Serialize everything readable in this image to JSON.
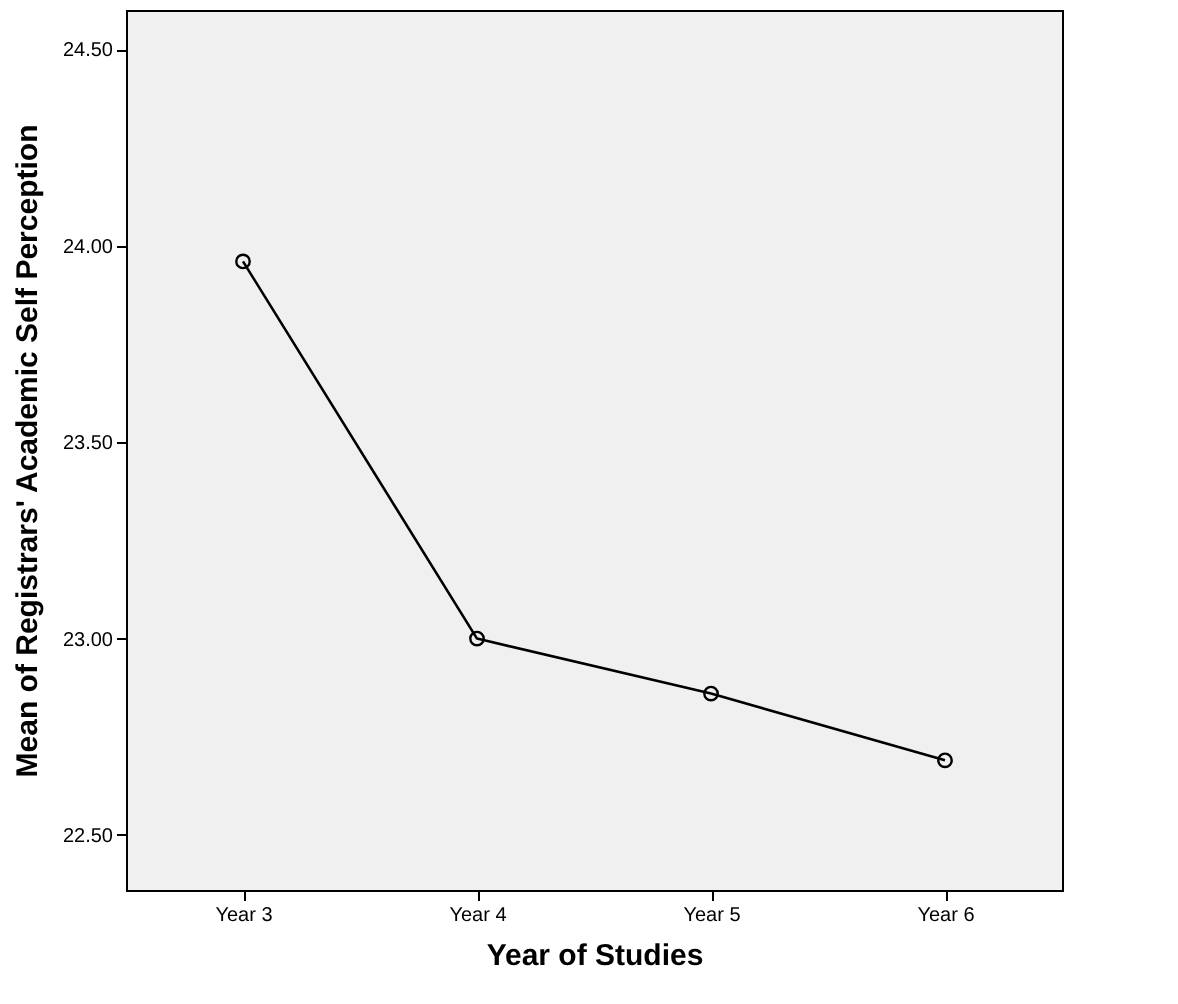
{
  "chart_data": {
    "type": "line",
    "xlabel": "Year of Studies",
    "ylabel": "Mean of Registrars' Academic Self Perception",
    "categories": [
      "Year 3",
      "Year 4",
      "Year 5",
      "Year 6"
    ],
    "series": [
      {
        "color": "#000000",
        "values": [
          23.96,
          23.0,
          22.86,
          22.69
        ]
      }
    ],
    "ylim": [
      22.36,
      24.6
    ],
    "yticks": [
      {
        "value": 22.5,
        "label": "22.50"
      },
      {
        "value": 23.0,
        "label": "23.00"
      },
      {
        "value": 23.5,
        "label": "23.50"
      },
      {
        "value": 24.0,
        "label": "24.00"
      },
      {
        "value": 24.5,
        "label": "24.50"
      }
    ],
    "grid": false,
    "legend": false,
    "marker": "circle",
    "line_style": "solid"
  }
}
